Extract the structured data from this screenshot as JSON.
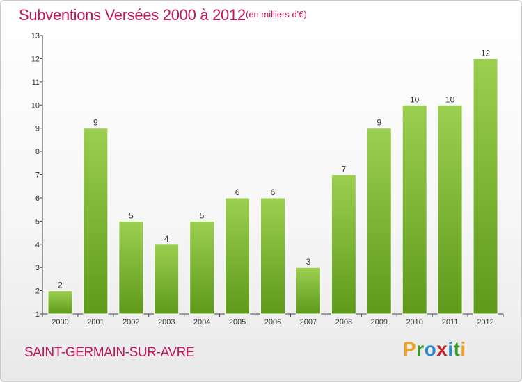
{
  "header": {
    "title": "Subventions Versées 2000 à 2012",
    "unit_note": "(en milliers d'€)"
  },
  "footer": {
    "commune": "SAINT-GERMAIN-SUR-AVRE",
    "logo_letters": [
      "P",
      "r",
      "o",
      "x",
      "i",
      "t",
      "i"
    ],
    "logo_colors": [
      "#f0a020",
      "#3a9a28",
      "#2a8ad0",
      "#c0222a",
      "#2a8ad0",
      "#3a9a28",
      "#f0a020"
    ]
  },
  "chart_data": {
    "type": "bar",
    "title": "Subventions Versées 2000 à 2012",
    "ylabel": "(en milliers d'€)",
    "xlabel": "",
    "categories": [
      "2000",
      "2001",
      "2002",
      "2003",
      "2004",
      "2005",
      "2006",
      "2007",
      "2008",
      "2009",
      "2010",
      "2011",
      "2012"
    ],
    "values": [
      2,
      9,
      5,
      4,
      5,
      6,
      6,
      3,
      7,
      9,
      10,
      10,
      12
    ],
    "y_ticks": [
      "1",
      "2",
      "3",
      "4",
      "5",
      "6",
      "7",
      "8",
      "9",
      "10",
      "11",
      "12",
      "13"
    ],
    "ylim": [
      1,
      13
    ],
    "grid": false,
    "bar_color_top": "#9ccf4f",
    "bar_color_bottom": "#5e9a1a"
  }
}
